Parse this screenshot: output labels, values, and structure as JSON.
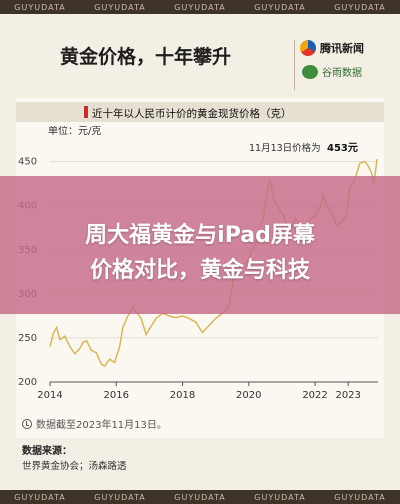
{
  "watermark": "GUYUDATA",
  "header": {
    "title": "黄金价格，十年攀升",
    "brand_primary": "腾讯新闻",
    "brand_secondary": "谷雨数据"
  },
  "overlay": {
    "line1": "周大福黄金与iPad屏幕",
    "line2": "价格对比，黄金与科技"
  },
  "footer": {
    "time_note": "数据截至2023年11月13日。",
    "source_title": "数据来源：",
    "source_body": "世界黄金协会；汤森路透"
  },
  "colors": {
    "line": "#d9b24a",
    "accent": "#c92b2b",
    "overlay": "#c46a88"
  },
  "chart_data": {
    "type": "line",
    "title": "近十年以人民币计价的黄金现货价格（克）",
    "ylabel": "单位：元/克",
    "ylim": [
      200,
      470
    ],
    "yticks": [
      200,
      250,
      300,
      350,
      400,
      450
    ],
    "xlim": [
      2014,
      2023.9
    ],
    "xticks": [
      2014,
      2016,
      2018,
      2020,
      2022,
      2023
    ],
    "annotation": {
      "text": "11月13日价格为",
      "value": "453元",
      "x": 2023.87,
      "y": 453
    },
    "series": [
      {
        "x": [
          2014.0,
          2014.1,
          2014.2,
          2014.3,
          2014.45,
          2014.6,
          2014.75,
          2014.9,
          2015.0,
          2015.1,
          2015.25,
          2015.4,
          2015.55,
          2015.65,
          2015.8,
          2015.95,
          2016.1,
          2016.2,
          2016.35,
          2016.5,
          2016.6,
          2016.75,
          2016.9,
          2017.0,
          2017.2,
          2017.4,
          2017.6,
          2017.8,
          2018.0,
          2018.2,
          2018.4,
          2018.6,
          2018.75,
          2018.9,
          2019.0,
          2019.2,
          2019.4,
          2019.5,
          2019.6,
          2019.75,
          2019.9,
          2020.0,
          2020.1,
          2020.2,
          2020.3,
          2020.45,
          2020.6,
          2020.65,
          2020.75,
          2020.9,
          2021.0,
          2021.15,
          2021.25,
          2021.4,
          2021.55,
          2021.7,
          2021.85,
          2022.0,
          2022.15,
          2022.25,
          2022.35,
          2022.5,
          2022.65,
          2022.8,
          2022.95,
          2023.05,
          2023.2,
          2023.35,
          2023.5,
          2023.6,
          2023.7,
          2023.78,
          2023.87
        ],
        "y": [
          240,
          255,
          262,
          248,
          252,
          240,
          232,
          238,
          245,
          247,
          236,
          233,
          220,
          218,
          226,
          222,
          240,
          262,
          275,
          285,
          280,
          272,
          254,
          260,
          272,
          278,
          275,
          273,
          275,
          272,
          268,
          256,
          262,
          268,
          272,
          278,
          286,
          308,
          332,
          330,
          334,
          340,
          350,
          355,
          372,
          388,
          424,
          428,
          408,
          398,
          392,
          378,
          372,
          385,
          380,
          378,
          385,
          388,
          398,
          412,
          400,
          392,
          378,
          382,
          390,
          420,
          430,
          448,
          450,
          445,
          438,
          425,
          453
        ]
      }
    ]
  }
}
